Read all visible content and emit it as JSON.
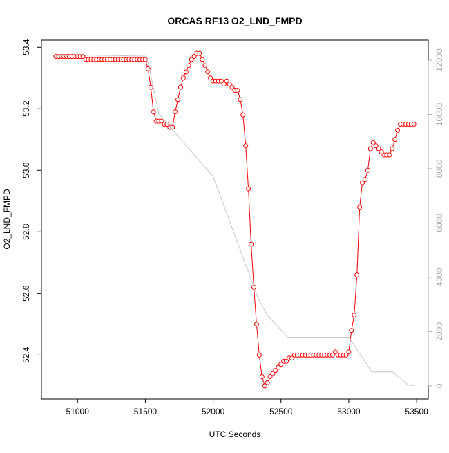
{
  "chart_data": {
    "type": "line",
    "title": "ORCAS RF13 O2_LND_FMPD",
    "x_label": "UTC Seconds",
    "y_label": "O2_LND_FMPD",
    "xlim": [
      50734,
      53586
    ],
    "ylim": [
      52.257,
      53.423
    ],
    "y2lim": [
      -490,
      12740
    ],
    "xticks": [
      51000,
      51500,
      52000,
      52500,
      53000,
      53500
    ],
    "yticks": [
      {
        "value": 52.4,
        "label": "52.4"
      },
      {
        "value": 52.6,
        "label": "52.6"
      },
      {
        "value": 52.8,
        "label": "52.8"
      },
      {
        "value": 53.0,
        "label": "53.0"
      },
      {
        "value": 53.2,
        "label": "53.2"
      },
      {
        "value": 53.4,
        "label": "53.4"
      }
    ],
    "y2ticks": [
      0,
      2000,
      4000,
      6000,
      8000,
      10000,
      12000
    ],
    "series": [
      {
        "color": "#ff0000",
        "marker": "circle",
        "x": [
          50840,
          50860,
          50880,
          50900,
          50920,
          50940,
          50960,
          50980,
          51000,
          51020,
          51040,
          51060,
          51080,
          51100,
          51120,
          51140,
          51160,
          51180,
          51200,
          51220,
          51240,
          51260,
          51280,
          51300,
          51320,
          51340,
          51360,
          51380,
          51400,
          51420,
          51440,
          51460,
          51480,
          51500,
          51520,
          51540,
          51560,
          51580,
          51600,
          51620,
          51640,
          51660,
          51680,
          51700,
          51720,
          51740,
          51760,
          51780,
          51800,
          51820,
          51840,
          51860,
          51880,
          51900,
          51920,
          51940,
          51960,
          51980,
          52000,
          52020,
          52040,
          52060,
          52080,
          52100,
          52120,
          52140,
          52160,
          52180,
          52200,
          52220,
          52240,
          52260,
          52280,
          52300,
          52320,
          52340,
          52360,
          52380,
          52400,
          52420,
          52440,
          52460,
          52480,
          52500,
          52520,
          52540,
          52560,
          52580,
          52600,
          52620,
          52640,
          52660,
          52680,
          52700,
          52720,
          52740,
          52760,
          52780,
          52800,
          52820,
          52840,
          52860,
          52880,
          52900,
          52920,
          52940,
          52960,
          52980,
          53000,
          53020,
          53040,
          53060,
          53080,
          53100,
          53120,
          53140,
          53160,
          53180,
          53200,
          53220,
          53240,
          53260,
          53280,
          53300,
          53320,
          53340,
          53360,
          53380,
          53400,
          53420,
          53440,
          53460,
          53480
        ],
        "values": [
          53.37,
          53.37,
          53.37,
          53.37,
          53.37,
          53.37,
          53.37,
          53.37,
          53.37,
          53.37,
          53.37,
          53.36,
          53.36,
          53.36,
          53.36,
          53.36,
          53.36,
          53.36,
          53.36,
          53.36,
          53.36,
          53.36,
          53.36,
          53.36,
          53.36,
          53.36,
          53.36,
          53.36,
          53.36,
          53.36,
          53.36,
          53.36,
          53.36,
          53.36,
          53.33,
          53.27,
          53.19,
          53.16,
          53.16,
          53.16,
          53.15,
          53.15,
          53.14,
          53.14,
          53.19,
          53.23,
          53.27,
          53.3,
          53.32,
          53.34,
          53.36,
          53.37,
          53.38,
          53.38,
          53.36,
          53.34,
          53.32,
          53.3,
          53.29,
          53.29,
          53.29,
          53.29,
          53.28,
          53.29,
          53.28,
          53.27,
          53.26,
          53.26,
          53.23,
          53.18,
          53.08,
          52.94,
          52.76,
          52.62,
          52.5,
          52.4,
          52.33,
          52.3,
          52.31,
          52.33,
          52.34,
          52.35,
          52.36,
          52.37,
          52.38,
          52.38,
          52.39,
          52.39,
          52.4,
          52.4,
          52.4,
          52.4,
          52.4,
          52.4,
          52.4,
          52.4,
          52.4,
          52.4,
          52.4,
          52.4,
          52.4,
          52.4,
          52.4,
          52.41,
          52.4,
          52.4,
          52.4,
          52.4,
          52.41,
          52.48,
          52.53,
          52.66,
          52.88,
          52.96,
          52.97,
          53.0,
          53.07,
          53.09,
          53.08,
          53.07,
          53.06,
          53.05,
          53.05,
          53.05,
          53.07,
          53.1,
          53.13,
          53.15,
          53.15,
          53.15,
          53.15,
          53.15,
          53.15
        ]
      },
      {
        "color": "#c8c8c8",
        "axis": "y2",
        "x": [
          50840,
          51000,
          51500,
          51520,
          51600,
          52000,
          52330,
          52400,
          52550,
          53000,
          53170,
          53320,
          53440,
          53480
        ],
        "values": [
          12150,
          12200,
          12150,
          11930,
          10010,
          7710,
          3240,
          2600,
          1790,
          1790,
          510,
          510,
          25,
          0
        ]
      }
    ]
  }
}
